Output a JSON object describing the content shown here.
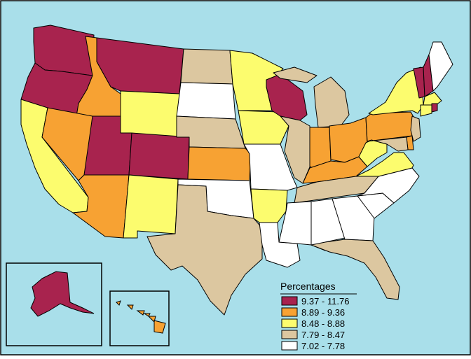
{
  "legend": {
    "title": "Percentages",
    "items": [
      {
        "label": "9.37 - 11.76",
        "color": "#a8234e"
      },
      {
        "label": "8.89 - 9.36",
        "color": "#f7a233"
      },
      {
        "label": "8.48 - 8.88",
        "color": "#fcfc6e"
      },
      {
        "label": "7.79 - 8.47",
        "color": "#dcc7a0"
      },
      {
        "label": "7.02 - 7.78",
        "color": "#ffffff"
      }
    ]
  },
  "colors": {
    "ocean": "#a9dfea",
    "border": "#000000"
  },
  "states": [
    {
      "id": "WA",
      "cls": 0
    },
    {
      "id": "OR",
      "cls": 0
    },
    {
      "id": "CA",
      "cls": 2
    },
    {
      "id": "ID",
      "cls": 1
    },
    {
      "id": "NV",
      "cls": 1
    },
    {
      "id": "MT",
      "cls": 0
    },
    {
      "id": "WY",
      "cls": 2
    },
    {
      "id": "UT",
      "cls": 0
    },
    {
      "id": "AZ",
      "cls": 1
    },
    {
      "id": "CO",
      "cls": 0
    },
    {
      "id": "NM",
      "cls": 2
    },
    {
      "id": "ND",
      "cls": 3
    },
    {
      "id": "SD",
      "cls": 4
    },
    {
      "id": "NE",
      "cls": 3
    },
    {
      "id": "KS",
      "cls": 1
    },
    {
      "id": "OK",
      "cls": 4
    },
    {
      "id": "TX",
      "cls": 3
    },
    {
      "id": "MN",
      "cls": 2
    },
    {
      "id": "IA",
      "cls": 2
    },
    {
      "id": "MO",
      "cls": 4
    },
    {
      "id": "AR",
      "cls": 2
    },
    {
      "id": "LA",
      "cls": 4
    },
    {
      "id": "WI",
      "cls": 0
    },
    {
      "id": "IL",
      "cls": 3
    },
    {
      "id": "MI",
      "cls": 3
    },
    {
      "id": "IN",
      "cls": 1
    },
    {
      "id": "OH",
      "cls": 1
    },
    {
      "id": "KY",
      "cls": 1
    },
    {
      "id": "TN",
      "cls": 3
    },
    {
      "id": "MS",
      "cls": 4
    },
    {
      "id": "AL",
      "cls": 4
    },
    {
      "id": "GA",
      "cls": 4
    },
    {
      "id": "FL",
      "cls": 3
    },
    {
      "id": "SC",
      "cls": 4
    },
    {
      "id": "NC",
      "cls": 4
    },
    {
      "id": "VA",
      "cls": 2
    },
    {
      "id": "WV",
      "cls": 2
    },
    {
      "id": "PA",
      "cls": 1
    },
    {
      "id": "NY",
      "cls": 2
    },
    {
      "id": "VT",
      "cls": 0
    },
    {
      "id": "NH",
      "cls": 0
    },
    {
      "id": "ME",
      "cls": 4
    },
    {
      "id": "MA",
      "cls": 2
    },
    {
      "id": "RI",
      "cls": 0
    },
    {
      "id": "CT",
      "cls": 2
    },
    {
      "id": "NJ",
      "cls": 3
    },
    {
      "id": "DE",
      "cls": 1
    },
    {
      "id": "MD",
      "cls": 3
    },
    {
      "id": "AK",
      "cls": 0
    },
    {
      "id": "HI",
      "cls": 1
    }
  ]
}
